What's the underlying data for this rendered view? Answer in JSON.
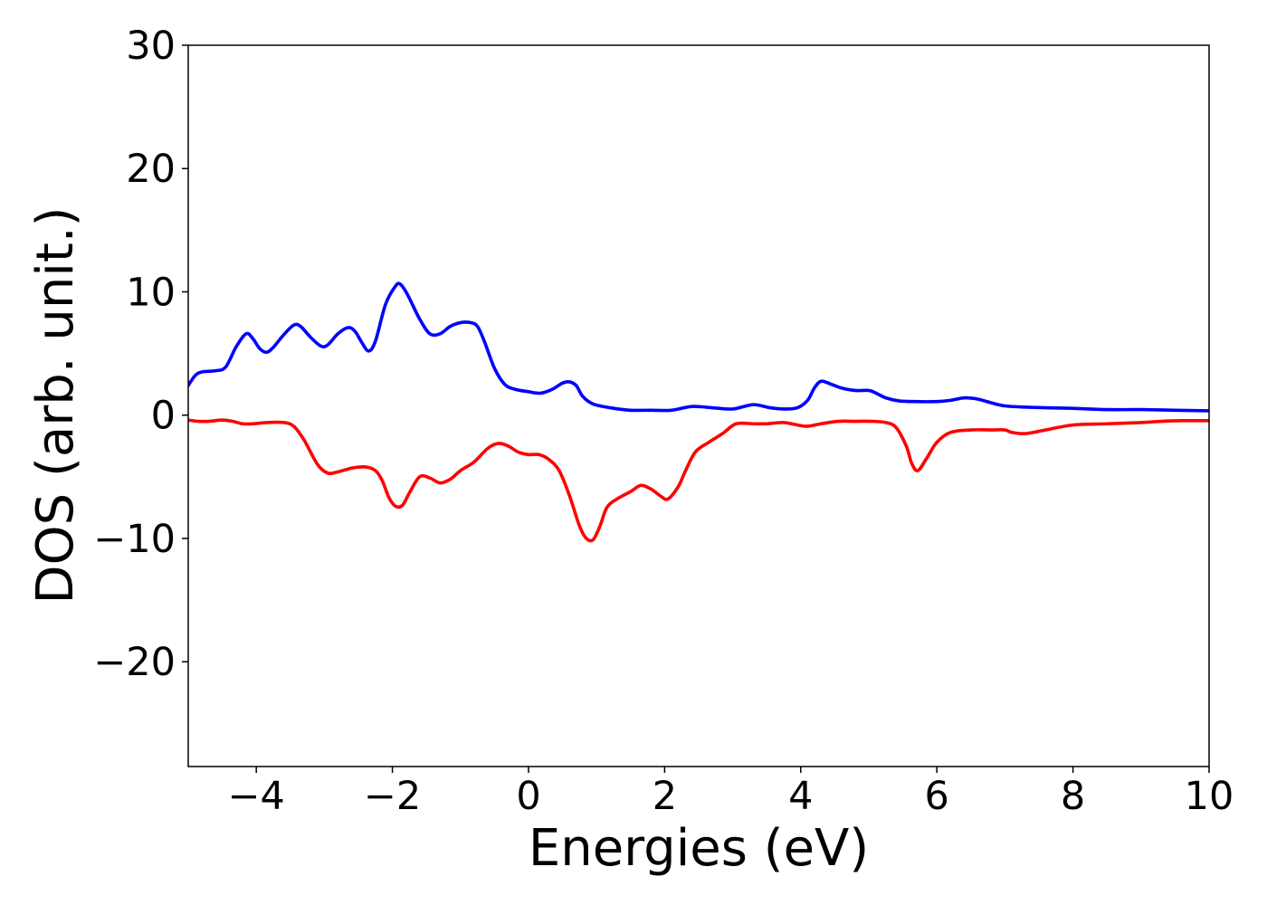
{
  "chart_data": {
    "type": "line",
    "title": "",
    "xlabel": "Energies (eV)",
    "ylabel": "DOS (arb. unit.)",
    "xlim": [
      -5,
      10
    ],
    "ylim": [
      -28.5,
      30
    ],
    "grid": false,
    "legend": "none",
    "x_ticks": [
      {
        "value": -4,
        "label": "−4"
      },
      {
        "value": -2,
        "label": "−2"
      },
      {
        "value": 0,
        "label": "0"
      },
      {
        "value": 2,
        "label": "2"
      },
      {
        "value": 4,
        "label": "4"
      },
      {
        "value": 6,
        "label": "6"
      },
      {
        "value": 8,
        "label": "8"
      },
      {
        "value": 10,
        "label": "10"
      }
    ],
    "y_ticks": [
      {
        "value": 30,
        "label": "30"
      },
      {
        "value": 20,
        "label": "20"
      },
      {
        "value": 10,
        "label": "10"
      },
      {
        "value": 0,
        "label": "0"
      },
      {
        "value": -10,
        "label": "−10"
      },
      {
        "value": -20,
        "label": "−20"
      }
    ],
    "series": [
      {
        "color": "#0000ff",
        "x": [
          -5.0,
          -4.9,
          -4.8,
          -4.6,
          -4.45,
          -4.3,
          -4.15,
          -4.05,
          -3.95,
          -3.85,
          -3.75,
          -3.6,
          -3.45,
          -3.35,
          -3.2,
          -3.05,
          -2.95,
          -2.8,
          -2.65,
          -2.55,
          -2.45,
          -2.35,
          -2.25,
          -2.1,
          -1.95,
          -1.88,
          -1.78,
          -1.6,
          -1.45,
          -1.3,
          -1.15,
          -1.0,
          -0.85,
          -0.75,
          -0.65,
          -0.5,
          -0.35,
          -0.2,
          0.0,
          0.1,
          0.2,
          0.35,
          0.5,
          0.6,
          0.7,
          0.8,
          0.95,
          1.2,
          1.5,
          1.8,
          2.1,
          2.4,
          2.7,
          3.0,
          3.3,
          3.55,
          3.75,
          3.95,
          4.1,
          4.2,
          4.3,
          4.45,
          4.6,
          4.8,
          5.0,
          5.1,
          5.25,
          5.45,
          5.7,
          6.0,
          6.2,
          6.4,
          6.6,
          6.8,
          7.0,
          7.3,
          7.6,
          8.0,
          8.5,
          9.0,
          9.5,
          10.0
        ],
        "y": [
          2.4,
          3.2,
          3.5,
          3.6,
          3.9,
          5.5,
          6.6,
          6.2,
          5.4,
          5.1,
          5.5,
          6.5,
          7.3,
          7.2,
          6.3,
          5.6,
          5.7,
          6.6,
          7.1,
          6.8,
          5.9,
          5.2,
          6.0,
          9.0,
          10.5,
          10.6,
          9.8,
          7.8,
          6.6,
          6.6,
          7.2,
          7.5,
          7.5,
          7.2,
          6.0,
          3.8,
          2.5,
          2.1,
          1.9,
          1.8,
          1.8,
          2.1,
          2.6,
          2.7,
          2.4,
          1.5,
          0.9,
          0.6,
          0.4,
          0.4,
          0.4,
          0.7,
          0.6,
          0.5,
          0.85,
          0.6,
          0.5,
          0.6,
          1.2,
          2.2,
          2.75,
          2.5,
          2.2,
          2.0,
          2.0,
          1.8,
          1.4,
          1.15,
          1.1,
          1.1,
          1.2,
          1.4,
          1.3,
          1.0,
          0.75,
          0.65,
          0.6,
          0.55,
          0.45,
          0.45,
          0.4,
          0.35
        ]
      },
      {
        "color": "#ff0000",
        "x": [
          -5.0,
          -4.85,
          -4.7,
          -4.5,
          -4.35,
          -4.2,
          -4.05,
          -3.85,
          -3.6,
          -3.45,
          -3.3,
          -3.1,
          -2.95,
          -2.8,
          -2.6,
          -2.4,
          -2.25,
          -2.15,
          -2.05,
          -1.95,
          -1.85,
          -1.75,
          -1.6,
          -1.45,
          -1.3,
          -1.15,
          -1.0,
          -0.8,
          -0.6,
          -0.45,
          -0.3,
          -0.15,
          0.0,
          0.15,
          0.3,
          0.45,
          0.6,
          0.75,
          0.85,
          0.95,
          1.05,
          1.15,
          1.3,
          1.5,
          1.65,
          1.8,
          1.95,
          2.05,
          2.2,
          2.3,
          2.45,
          2.65,
          2.85,
          3.05,
          3.3,
          3.5,
          3.75,
          3.95,
          4.1,
          4.3,
          4.55,
          4.8,
          5.05,
          5.25,
          5.4,
          5.55,
          5.63,
          5.72,
          5.85,
          6.0,
          6.2,
          6.5,
          6.8,
          7.0,
          7.1,
          7.3,
          7.6,
          8.0,
          8.5,
          9.0,
          9.3,
          9.6,
          10.0
        ],
        "y": [
          -0.4,
          -0.5,
          -0.5,
          -0.4,
          -0.5,
          -0.7,
          -0.7,
          -0.6,
          -0.6,
          -0.9,
          -2.0,
          -4.0,
          -4.7,
          -4.6,
          -4.3,
          -4.2,
          -4.5,
          -5.3,
          -6.7,
          -7.4,
          -7.3,
          -6.3,
          -5.0,
          -5.1,
          -5.5,
          -5.2,
          -4.5,
          -3.8,
          -2.7,
          -2.3,
          -2.5,
          -3.0,
          -3.2,
          -3.2,
          -3.6,
          -4.5,
          -6.5,
          -9.0,
          -10.0,
          -10.1,
          -9.0,
          -7.5,
          -6.8,
          -6.2,
          -5.7,
          -6.0,
          -6.6,
          -6.8,
          -5.8,
          -4.6,
          -3.0,
          -2.2,
          -1.5,
          -0.7,
          -0.7,
          -0.7,
          -0.6,
          -0.8,
          -0.9,
          -0.7,
          -0.5,
          -0.5,
          -0.5,
          -0.6,
          -1.0,
          -2.5,
          -3.9,
          -4.5,
          -3.5,
          -2.2,
          -1.4,
          -1.2,
          -1.2,
          -1.2,
          -1.4,
          -1.5,
          -1.2,
          -0.8,
          -0.7,
          -0.6,
          -0.5,
          -0.45,
          -0.45
        ]
      }
    ]
  }
}
